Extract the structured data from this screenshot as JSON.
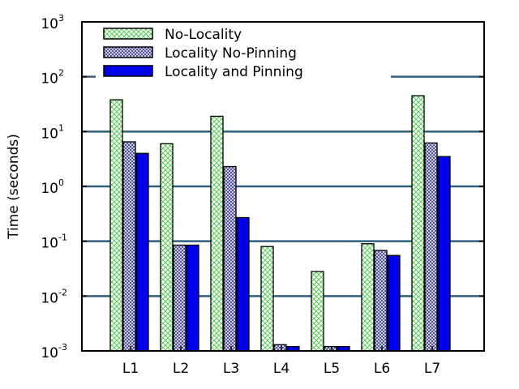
{
  "chart_data": {
    "type": "bar",
    "title": "",
    "xlabel": "",
    "ylabel": "Time (seconds)",
    "yscale": "log",
    "ylim": [
      0.001,
      1000
    ],
    "grid": "y-major",
    "legend_position": "top-left",
    "categories": [
      "L1",
      "L2",
      "L3",
      "L4",
      "L5",
      "L6",
      "L7"
    ],
    "y_ticks": [
      {
        "base": "10",
        "exp": "-3",
        "value": 0.001
      },
      {
        "base": "10",
        "exp": "-2",
        "value": 0.01
      },
      {
        "base": "10",
        "exp": "-1",
        "value": 0.1
      },
      {
        "base": "10",
        "exp": "0",
        "value": 1
      },
      {
        "base": "10",
        "exp": "1",
        "value": 10
      },
      {
        "base": "10",
        "exp": "2",
        "value": 100
      },
      {
        "base": "10",
        "exp": "3",
        "value": 1000
      }
    ],
    "series": [
      {
        "name": "No-Locality",
        "pattern": "crosshatch",
        "color": "#99ee99",
        "values": [
          38,
          6,
          19,
          0.08,
          0.028,
          0.09,
          45
        ]
      },
      {
        "name": "Locality No-Pinning",
        "pattern": "checker",
        "color": "#7777bb",
        "values": [
          6.5,
          0.085,
          2.3,
          0.0013,
          0.0012,
          0.068,
          6.2
        ]
      },
      {
        "name": "Locality and Pinning",
        "pattern": "solid",
        "color": "#0000ee",
        "values": [
          4,
          0.085,
          0.27,
          0.0012,
          0.0012,
          0.055,
          3.5
        ]
      }
    ],
    "colors": {
      "grid": "#2f5f7f",
      "axis": "#000000"
    }
  }
}
